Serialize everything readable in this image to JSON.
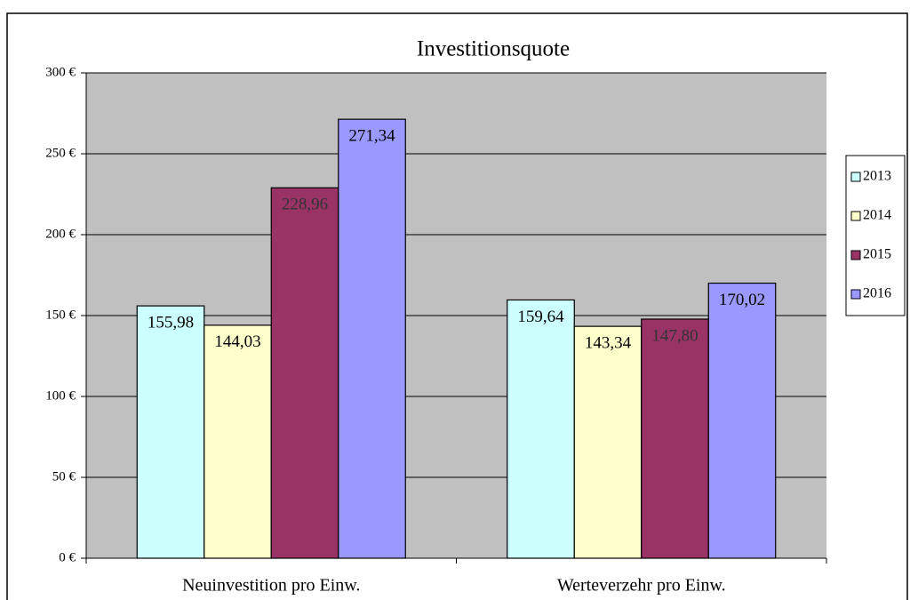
{
  "chart_data": {
    "type": "bar",
    "title": "Investitionsquote",
    "categories": [
      "Neuinvestition pro Einw.",
      "Werteverzehr pro Einw."
    ],
    "series": [
      {
        "name": "2013",
        "color": "#ccffff",
        "values": [
          155.98,
          159.64
        ],
        "value_labels": [
          "155,98",
          "159,64"
        ]
      },
      {
        "name": "2014",
        "color": "#ffffcc",
        "values": [
          144.03,
          143.34
        ],
        "value_labels": [
          "144,03",
          "143,34"
        ]
      },
      {
        "name": "2015",
        "color": "#993366",
        "values": [
          228.96,
          147.8
        ],
        "value_labels": [
          "228,96",
          "147,80"
        ]
      },
      {
        "name": "2016",
        "color": "#9999ff",
        "values": [
          271.34,
          170.02
        ],
        "value_labels": [
          "271,34",
          "170,02"
        ]
      }
    ],
    "ylim": [
      0,
      300
    ],
    "yticks": [
      {
        "value": 0,
        "label": "0 €"
      },
      {
        "value": 50,
        "label": "50 €"
      },
      {
        "value": 100,
        "label": "100 €"
      },
      {
        "value": 150,
        "label": "150 €"
      },
      {
        "value": 200,
        "label": "200 €"
      },
      {
        "value": 250,
        "label": "250 €"
      },
      {
        "value": 300,
        "label": "300 €"
      }
    ],
    "grid": true,
    "legend": "right",
    "plot_background": "#c0c0c0"
  }
}
